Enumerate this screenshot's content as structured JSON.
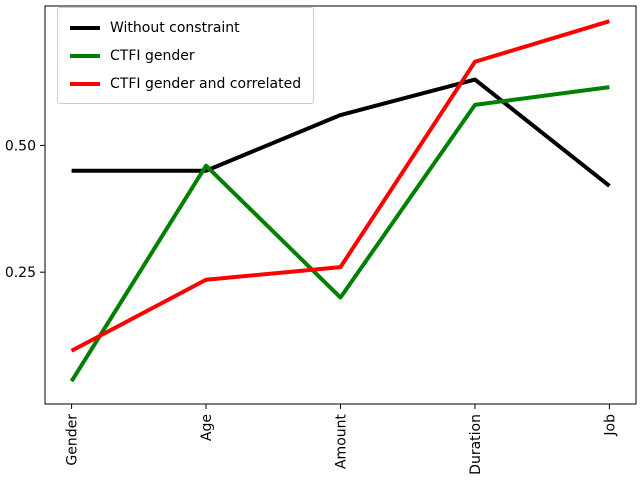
{
  "chart_data": {
    "type": "line",
    "title": "",
    "xlabel": "",
    "ylabel": "",
    "categories": [
      "Gender",
      "Age",
      "Amount",
      "Duration",
      "Job"
    ],
    "series": [
      {
        "name": "Without constraint",
        "color": "#000000",
        "values": [
          0.45,
          0.45,
          0.56,
          0.63,
          0.42
        ]
      },
      {
        "name": "CTFI gender",
        "color": "#008000",
        "values": [
          0.035,
          0.46,
          0.2,
          0.58,
          0.615
        ]
      },
      {
        "name": "CTFI gender and correlated",
        "color": "#ff0000",
        "values": [
          0.095,
          0.235,
          0.26,
          0.665,
          0.745
        ]
      }
    ],
    "yticks": [
      0.25,
      0.5
    ],
    "ytick_labels": [
      "0.25",
      "0.50"
    ],
    "ylim": [
      -0.01,
      0.775
    ],
    "grid": false,
    "legend_position": "upper left",
    "x_tick_rotation": 90,
    "line_width": 4
  }
}
